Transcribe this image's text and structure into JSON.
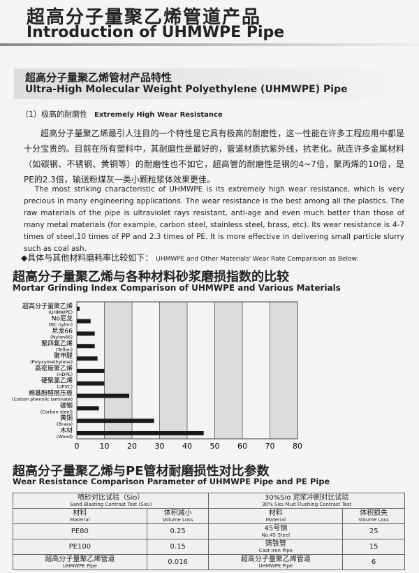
{
  "header": {
    "title_zh": "超高分子量聚乙烯管道产品",
    "title_en": "Introduction of UHMWPE Pipe"
  },
  "section": {
    "title_zh": "超高分子量聚乙烯管材产品特性",
    "title_en": "Ultra-High Molecular Weight Polyethylene (UHMWPE) Pipe"
  },
  "feature": {
    "label_zh": "（1）极高的耐磨性",
    "label_en": "Extremely High Wear Resistance"
  },
  "paragraph_zh": "超高分子量聚乙烯最引人注目的一个特性是它具有极高的耐磨性，这一性能在许多工程应用中都是十分宝贵的。目前在所有塑料中，其耐磨性是最好的，管道材质抗紫外线，抗老化。就连许多金属材料（如碳钢、不锈钢、黄铜等）的耐磨性也不如它，超高管的耐磨性是钢的4~7倍，聚丙烯的10倍，是PE的2.3倍，输送粉煤灰一类小颗粒浆体效果更佳。",
  "paragraph_en": "The most striking characteristic of UHMWPE is its extremely high wear resistance, which is very precious in many engineering applications. The wear resistance is the best among all the plastics. The raw materials of the pipe is ultraviolet rays resistant, anti-age and even much better than those of many metal materials (for example, carbon steel, stainless steel, brass, etc). Its wear resistance is 4-7 times of steel,10 times of PP and 2.3 times of PE. It is more effective in delivering small particle slurry such as coal ash.",
  "comparison_note": {
    "zh": "◆具体与其他材料磨耗率比较如下：",
    "en": "UHMWPE and Other Materials' Wear Rate Comparision as Below:"
  },
  "chart_data": {
    "type": "bar",
    "orientation": "horizontal",
    "title": "超高分子量聚乙烯与各种材料砂浆磨损指数的比较",
    "subtitle": "Mortar Grinding Index Comparison of UHMWPE and Various Materials",
    "categories": [
      "超高分子量聚乙烯",
      "No尼龙",
      "尼龙66",
      "聚四氟乙烯",
      "聚甲醛",
      "高密度聚乙烯",
      "硬聚氯乙烯",
      "棉基酚醛层压板",
      "碳钢",
      "黄铜",
      "木材"
    ],
    "category_sublabels": [
      "(UHMWPE)",
      "(NC nylon)",
      "(Nylon66)",
      "(Teflon)",
      "(Polyxymethylene)",
      "(HDPE)",
      "(UPVC)",
      "(Cotton phenolic laminate)",
      "(Carbon steel)",
      "(Brass)",
      "(Wood)"
    ],
    "values": [
      1,
      5,
      6.5,
      6.5,
      7.5,
      10,
      10,
      19,
      8,
      28,
      46
    ],
    "color": "#1a1a1a",
    "xlim": [
      0,
      80
    ],
    "xticks": [
      0,
      10,
      20,
      30,
      40,
      50,
      60,
      70,
      80
    ],
    "grid": true
  },
  "table": {
    "title_zh": "超高分子量聚乙烯与PE管材耐磨损性对比参数",
    "title_en": "Wear Resistance Comparison Parameter of UHMWPE Pipe and PE Pipe",
    "groups": [
      {
        "zh": "喷砂对比试验（Sio）",
        "en": "Sand Blasting Contrast Test (Sio₂)"
      },
      {
        "zh": "30%Sio 泥浆冲刷对比试验",
        "en": "30% Sio₂ Mud Flushing Contrast Test"
      }
    ],
    "headers": [
      {
        "zh": "材料",
        "en": "Material"
      },
      {
        "zh": "体积减小",
        "en": "Volume Loss"
      },
      {
        "zh": "材料",
        "en": "Material"
      },
      {
        "zh": "体积损失",
        "en": "Volume Loss"
      }
    ],
    "rows": [
      {
        "material_a": {
          "zh": "PE80"
        },
        "loss_a": 0.25,
        "material_b": {
          "zh": "45号钢",
          "en": "No.45 Steel"
        },
        "loss_b": 25
      },
      {
        "material_a": {
          "zh": "PE100"
        },
        "loss_a": 0.15,
        "material_b": {
          "zh": "铸铁管",
          "en": "Cast Iron Pipe"
        },
        "loss_b": 15
      },
      {
        "material_a": {
          "zh": "超高分子量聚乙烯管道",
          "en": "UHMWPE Pipe"
        },
        "loss_a": 0.016,
        "material_b": {
          "zh": "超高分子量聚乙烯管道",
          "en": "UHMWPE Pipe"
        },
        "loss_b": 6
      }
    ]
  }
}
